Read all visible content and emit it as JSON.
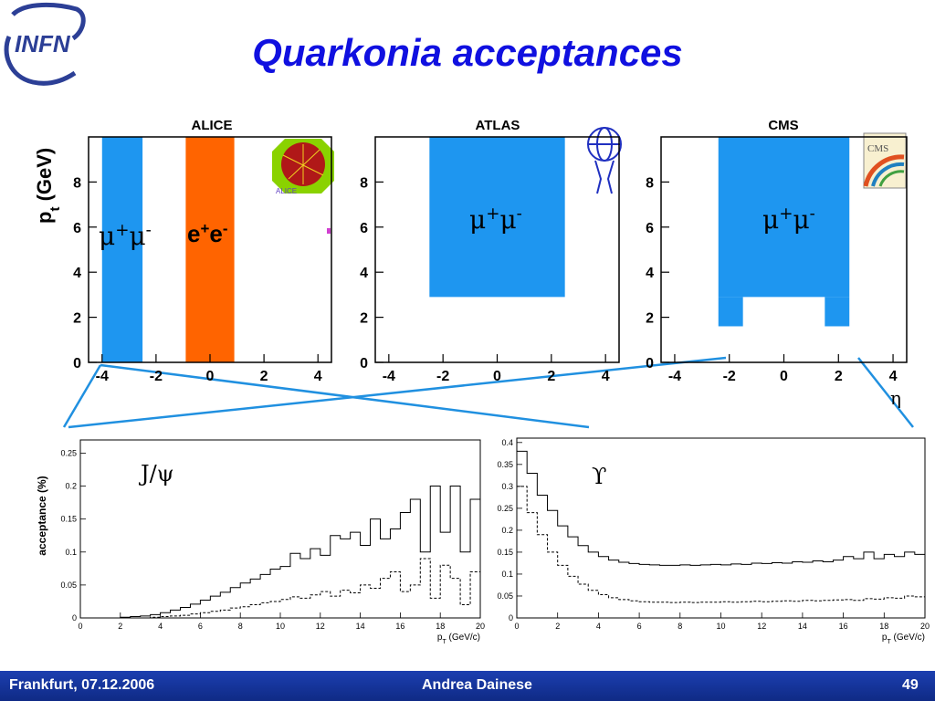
{
  "slide": {
    "title": "Quarkonia acceptances",
    "logo_text": "INFN",
    "footer": {
      "left": "Frankfurt, 07.12.2006",
      "center": "Andrea Dainese",
      "page": "49"
    },
    "eta_symbol": "η"
  },
  "colors": {
    "title": "#1010e0",
    "blue_band": "#1e96f0",
    "orange_band": "#ff6400",
    "footer": "#1c3fb0",
    "connector": "#2090e0"
  },
  "icons": [
    "alice-logo-icon",
    "atlas-logo-icon",
    "cms-logo-icon"
  ],
  "chart_data": [
    {
      "type": "area",
      "title": "ALICE",
      "ylabel": "pt (GeV)",
      "xticks": [
        "-4",
        "-2",
        "0",
        "2",
        "4"
      ],
      "yticks": [
        "0",
        "2",
        "4",
        "6",
        "8"
      ],
      "xlim": [
        -4.5,
        4.5
      ],
      "ylim": [
        0,
        10
      ],
      "regions": [
        {
          "name": "μ+μ-",
          "eta": [
            -4,
            -2.5
          ],
          "pt": [
            0,
            10
          ],
          "color": "#1e96f0"
        },
        {
          "name": "e+e-",
          "eta": [
            -0.9,
            0.9
          ],
          "pt": [
            0,
            10
          ],
          "color": "#ff6400"
        }
      ]
    },
    {
      "type": "area",
      "title": "ATLAS",
      "xticks": [
        "-4",
        "-2",
        "0",
        "2",
        "4"
      ],
      "yticks": [
        "0",
        "2",
        "4",
        "6",
        "8"
      ],
      "xlim": [
        -4.5,
        4.5
      ],
      "ylim": [
        0,
        10
      ],
      "regions": [
        {
          "name": "μ+μ-",
          "eta": [
            -2.5,
            2.5
          ],
          "pt": [
            2.9,
            10
          ],
          "color": "#1e96f0"
        }
      ]
    },
    {
      "type": "area",
      "title": "CMS",
      "xlabel": "η",
      "xticks": [
        "-4",
        "-2",
        "0",
        "2",
        "4"
      ],
      "yticks": [
        "0",
        "2",
        "4",
        "6",
        "8"
      ],
      "xlim": [
        -4.5,
        4.5
      ],
      "ylim": [
        0,
        10
      ],
      "regions": [
        {
          "name": "μ+μ-",
          "eta": [
            -2.4,
            2.4
          ],
          "pt": [
            2.9,
            10
          ],
          "color": "#1e96f0"
        },
        {
          "name": "",
          "eta": [
            -2.4,
            -1.5
          ],
          "pt": [
            1.6,
            2.9
          ],
          "color": "#1e96f0"
        },
        {
          "name": "",
          "eta": [
            1.5,
            2.4
          ],
          "pt": [
            1.6,
            2.9
          ],
          "color": "#1e96f0"
        }
      ]
    },
    {
      "type": "line",
      "annotation": "J/ψ",
      "ylabel": "acceptance (%)",
      "xlabel": "pT (GeV/c)",
      "xticks": [
        "0",
        "2",
        "4",
        "6",
        "8",
        "10",
        "12",
        "14",
        "16",
        "18",
        "20"
      ],
      "yticks": [
        "0",
        "0.05",
        "0.1",
        "0.15",
        "0.2",
        "0.25"
      ],
      "xlim": [
        0,
        20
      ],
      "ylim": [
        0,
        0.27
      ],
      "series": [
        {
          "style": "solid",
          "x": [
            0,
            0.5,
            1,
            1.5,
            2,
            2.5,
            3,
            3.5,
            4,
            4.5,
            5,
            5.5,
            6,
            6.5,
            7,
            7.5,
            8,
            8.5,
            9,
            9.5,
            10,
            10.5,
            11,
            11.5,
            12,
            12.5,
            13,
            13.5,
            14,
            14.5,
            15,
            15.5,
            16,
            16.5,
            17,
            17.5,
            18,
            18.5,
            19,
            19.5
          ],
          "y": [
            0,
            0,
            0,
            0,
            0.001,
            0.002,
            0.003,
            0.005,
            0.008,
            0.012,
            0.016,
            0.021,
            0.027,
            0.033,
            0.039,
            0.046,
            0.053,
            0.059,
            0.066,
            0.074,
            0.078,
            0.098,
            0.09,
            0.105,
            0.095,
            0.125,
            0.12,
            0.13,
            0.11,
            0.15,
            0.12,
            0.135,
            0.16,
            0.18,
            0.1,
            0.2,
            0.13,
            0.2,
            0.1,
            0.18
          ]
        },
        {
          "style": "dashed",
          "x": [
            0,
            0.5,
            1,
            1.5,
            2,
            2.5,
            3,
            3.5,
            4,
            4.5,
            5,
            5.5,
            6,
            6.5,
            7,
            7.5,
            8,
            8.5,
            9,
            9.5,
            10,
            10.5,
            11,
            11.5,
            12,
            12.5,
            13,
            13.5,
            14,
            14.5,
            15,
            15.5,
            16,
            16.5,
            17,
            17.5,
            18,
            18.5,
            19,
            19.5
          ],
          "y": [
            0,
            0,
            0,
            0,
            0,
            0,
            0,
            0.001,
            0.002,
            0.003,
            0.004,
            0.006,
            0.008,
            0.01,
            0.012,
            0.015,
            0.017,
            0.02,
            0.023,
            0.025,
            0.028,
            0.032,
            0.03,
            0.035,
            0.04,
            0.033,
            0.042,
            0.038,
            0.05,
            0.045,
            0.06,
            0.07,
            0.04,
            0.05,
            0.09,
            0.03,
            0.08,
            0.06,
            0.02,
            0.07
          ]
        }
      ]
    },
    {
      "type": "line",
      "annotation": "ϒ",
      "xlabel": "pT (GeV/c)",
      "xticks": [
        "0",
        "2",
        "4",
        "6",
        "8",
        "10",
        "12",
        "14",
        "16",
        "18",
        "20"
      ],
      "yticks": [
        "0",
        "0.05",
        "0.1",
        "0.15",
        "0.2",
        "0.25",
        "0.3",
        "0.35",
        "0.4"
      ],
      "xlim": [
        0,
        20
      ],
      "ylim": [
        0,
        0.41
      ],
      "series": [
        {
          "style": "solid",
          "x": [
            0,
            0.5,
            1,
            1.5,
            2,
            2.5,
            3,
            3.5,
            4,
            4.5,
            5,
            5.5,
            6,
            6.5,
            7,
            7.5,
            8,
            8.5,
            9,
            9.5,
            10,
            10.5,
            11,
            11.5,
            12,
            12.5,
            13,
            13.5,
            14,
            14.5,
            15,
            15.5,
            16,
            16.5,
            17,
            17.5,
            18,
            18.5,
            19,
            19.5
          ],
          "y": [
            0.38,
            0.33,
            0.28,
            0.245,
            0.21,
            0.185,
            0.165,
            0.15,
            0.14,
            0.132,
            0.127,
            0.124,
            0.122,
            0.121,
            0.12,
            0.12,
            0.121,
            0.12,
            0.121,
            0.122,
            0.121,
            0.123,
            0.122,
            0.125,
            0.124,
            0.126,
            0.125,
            0.128,
            0.127,
            0.13,
            0.128,
            0.132,
            0.14,
            0.135,
            0.15,
            0.135,
            0.145,
            0.14,
            0.15,
            0.145
          ]
        },
        {
          "style": "dashed",
          "x": [
            0,
            0.5,
            1,
            1.5,
            2,
            2.5,
            3,
            3.5,
            4,
            4.5,
            5,
            5.5,
            6,
            6.5,
            7,
            7.5,
            8,
            8.5,
            9,
            9.5,
            10,
            10.5,
            11,
            11.5,
            12,
            12.5,
            13,
            13.5,
            14,
            14.5,
            15,
            15.5,
            16,
            16.5,
            17,
            17.5,
            18,
            18.5,
            19,
            19.5
          ],
          "y": [
            0.3,
            0.24,
            0.19,
            0.15,
            0.12,
            0.095,
            0.077,
            0.063,
            0.053,
            0.046,
            0.042,
            0.039,
            0.037,
            0.036,
            0.036,
            0.035,
            0.036,
            0.035,
            0.036,
            0.036,
            0.037,
            0.036,
            0.037,
            0.038,
            0.037,
            0.038,
            0.039,
            0.038,
            0.04,
            0.039,
            0.04,
            0.041,
            0.042,
            0.04,
            0.044,
            0.043,
            0.046,
            0.045,
            0.05,
            0.048
          ]
        }
      ]
    }
  ]
}
